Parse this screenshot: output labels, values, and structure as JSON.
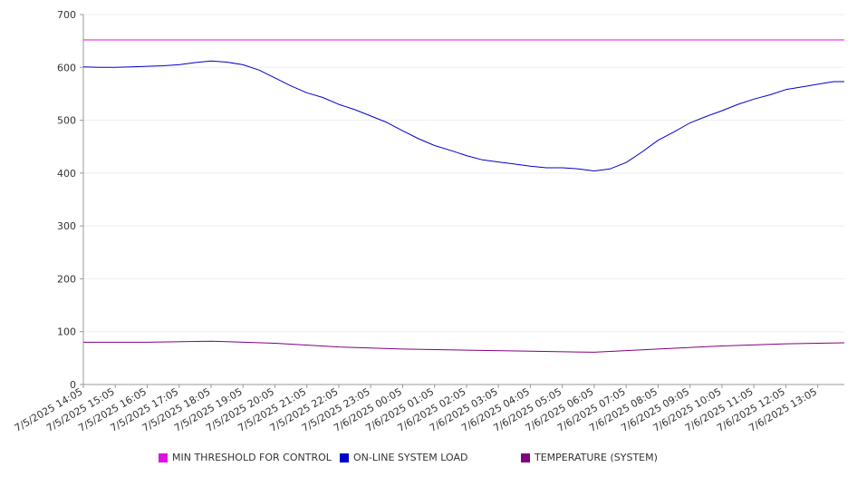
{
  "chart_data": {
    "type": "line",
    "title": "",
    "xlabel": "",
    "ylabel": "",
    "ylim": [
      0,
      700
    ],
    "y_ticks": [
      0,
      100,
      200,
      300,
      400,
      500,
      600,
      700
    ],
    "grid": "horizontal",
    "legend_position": "bottom",
    "x_ticks": [
      "7/5/2025 14:05",
      "7/5/2025 15:05",
      "7/5/2025 16:05",
      "7/5/2025 17:05",
      "7/5/2025 18:05",
      "7/5/2025 19:05",
      "7/5/2025 20:05",
      "7/5/2025 21:05",
      "7/5/2025 22:05",
      "7/5/2025 23:05",
      "7/6/2025 00:05",
      "7/6/2025 01:05",
      "7/6/2025 02:05",
      "7/6/2025 03:05",
      "7/6/2025 04:05",
      "7/6/2025 05:05",
      "7/6/2025 06:05",
      "7/6/2025 07:05",
      "7/6/2025 08:05",
      "7/6/2025 09:05",
      "7/6/2025 10:05",
      "7/6/2025 11:05",
      "7/6/2025 12:05",
      "7/6/2025 13:05"
    ],
    "x_time_range": [
      "7/5/2025 14:05",
      "7/6/2025 13:55"
    ],
    "series": [
      {
        "name": "MIN THRESHOLD FOR CONTROL",
        "color": "#e010e0",
        "x": [
          "7/5/2025 14:05",
          "7/6/2025 13:55"
        ],
        "values": [
          652,
          652
        ]
      },
      {
        "name": "ON-LINE SYSTEM LOAD",
        "color": "#0000cc",
        "x": [
          "7/5/2025 14:05",
          "7/5/2025 14:35",
          "7/5/2025 15:05",
          "7/5/2025 15:35",
          "7/5/2025 16:05",
          "7/5/2025 16:35",
          "7/5/2025 17:05",
          "7/5/2025 17:35",
          "7/5/2025 18:05",
          "7/5/2025 18:35",
          "7/5/2025 19:05",
          "7/5/2025 19:35",
          "7/5/2025 20:05",
          "7/5/2025 20:35",
          "7/5/2025 21:05",
          "7/5/2025 21:35",
          "7/5/2025 22:05",
          "7/5/2025 22:35",
          "7/5/2025 23:05",
          "7/5/2025 23:35",
          "7/6/2025 00:05",
          "7/6/2025 00:35",
          "7/6/2025 01:05",
          "7/6/2025 01:35",
          "7/6/2025 02:05",
          "7/6/2025 02:35",
          "7/6/2025 03:05",
          "7/6/2025 03:35",
          "7/6/2025 04:05",
          "7/6/2025 04:35",
          "7/6/2025 05:05",
          "7/6/2025 05:35",
          "7/6/2025 06:05",
          "7/6/2025 06:35",
          "7/6/2025 07:05",
          "7/6/2025 07:35",
          "7/6/2025 08:05",
          "7/6/2025 08:35",
          "7/6/2025 09:05",
          "7/6/2025 09:35",
          "7/6/2025 10:05",
          "7/6/2025 10:35",
          "7/6/2025 11:05",
          "7/6/2025 11:35",
          "7/6/2025 12:05",
          "7/6/2025 12:35",
          "7/6/2025 13:05",
          "7/6/2025 13:35",
          "7/6/2025 13:55"
        ],
        "values": [
          601,
          600,
          600,
          601,
          602,
          603,
          605,
          609,
          612,
          610,
          605,
          595,
          580,
          565,
          552,
          543,
          530,
          520,
          508,
          496,
          480,
          465,
          452,
          443,
          433,
          425,
          421,
          417,
          413,
          410,
          410,
          408,
          404,
          408,
          420,
          440,
          462,
          478,
          495,
          507,
          518,
          530,
          540,
          548,
          558,
          563,
          568,
          573,
          573
        ]
      },
      {
        "name": "TEMPERATURE (SYSTEM)",
        "color": "#800080",
        "x": [
          "7/5/2025 14:05",
          "7/5/2025 16:05",
          "7/5/2025 18:05",
          "7/5/2025 20:05",
          "7/5/2025 22:05",
          "7/6/2025 00:05",
          "7/6/2025 02:05",
          "7/6/2025 04:05",
          "7/6/2025 06:05",
          "7/6/2025 08:05",
          "7/6/2025 10:05",
          "7/6/2025 12:05",
          "7/6/2025 13:55"
        ],
        "values": [
          80,
          80,
          82,
          78,
          71,
          67,
          65,
          63,
          61,
          67,
          73,
          77,
          79
        ]
      }
    ]
  }
}
